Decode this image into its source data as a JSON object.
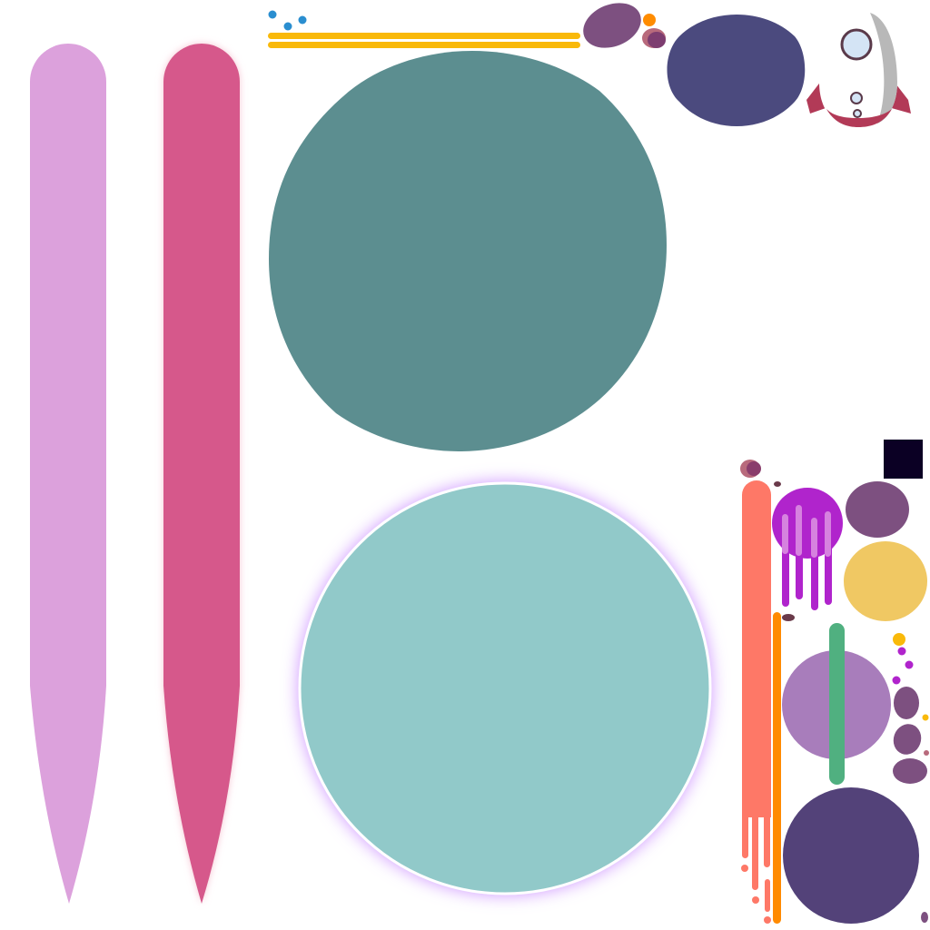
{
  "sheet": {
    "background": "#ffffff",
    "sprites": [
      {
        "name": "pink-tentacle-light",
        "color": "#dca1dc"
      },
      {
        "name": "pink-tentacle-dark",
        "color": "#d6598b",
        "glow": "#f7c6d4"
      },
      {
        "name": "teal-planet-large",
        "color": "#5c8e90"
      },
      {
        "name": "light-teal-planet-glow",
        "color": "#91c9c9",
        "glow": "#cf97ff"
      },
      {
        "name": "navy-planet-lens",
        "color": "#4b4a7e"
      },
      {
        "name": "rocket-ship",
        "body": "#ffffff",
        "shade": "#b8b8b8",
        "fins": "#b23a57",
        "window": "#d4e4f5",
        "rim": "#5a3a4a"
      },
      {
        "name": "yellow-streak",
        "color": "#f9b90a"
      },
      {
        "name": "blue-dot",
        "color": "#2a8ed0"
      },
      {
        "name": "purple-asteroid",
        "color": "#7d5080"
      },
      {
        "name": "orange-dot",
        "color": "#ff8c00"
      },
      {
        "name": "coral-rocket-trail",
        "color": "#fe7867"
      },
      {
        "name": "orange-rocket-trail",
        "color": "#ff8a00"
      },
      {
        "name": "magenta-jellyfish-planet",
        "color": "#b024cc",
        "stripes": "#e3a1e6"
      },
      {
        "name": "gold-planet",
        "color": "#f0c863"
      },
      {
        "name": "lavender-planet",
        "color": "#a87dbb"
      },
      {
        "name": "green-ring-bar",
        "color": "#50b080"
      },
      {
        "name": "dark-purple-planet",
        "color": "#534279"
      },
      {
        "name": "dark-navy-square",
        "color": "#0b0024"
      }
    ]
  }
}
